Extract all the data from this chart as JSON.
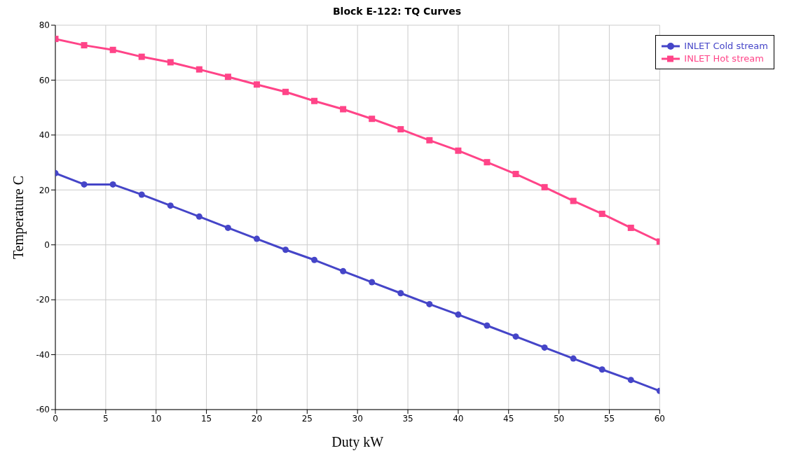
{
  "chart_data": {
    "type": "line",
    "title": "Block E-122: TQ Curves",
    "xlabel": "Duty kW",
    "ylabel": "Temperature C",
    "x": [
      0,
      2.857,
      5.714,
      8.571,
      11.429,
      14.286,
      17.143,
      20,
      22.857,
      25.714,
      28.571,
      31.429,
      34.286,
      37.143,
      40,
      42.857,
      45.714,
      48.571,
      51.429,
      54.286,
      57.143,
      60
    ],
    "series": [
      {
        "name": "INLET Cold stream",
        "color": "#4545c8",
        "marker": "circle",
        "values": [
          26.1,
          22.0,
          22.0,
          18.3,
          14.3,
          10.3,
          6.2,
          2.2,
          -1.8,
          -5.5,
          -9.6,
          -13.6,
          -17.6,
          -21.6,
          -25.4,
          -29.4,
          -33.4,
          -37.4,
          -41.4,
          -45.4,
          -49.2,
          -53.2
        ]
      },
      {
        "name": "INLET Hot stream",
        "color": "#ff4488",
        "marker": "square",
        "values": [
          75.0,
          72.7,
          71.0,
          68.5,
          66.5,
          63.9,
          61.2,
          58.4,
          55.7,
          52.4,
          49.4,
          45.9,
          42.1,
          38.1,
          34.3,
          30.1,
          25.8,
          21.0,
          16.0,
          11.3,
          6.2,
          1.2
        ]
      }
    ],
    "xlim": [
      0,
      60
    ],
    "xticks": [
      0,
      5,
      10,
      15,
      20,
      25,
      30,
      35,
      40,
      45,
      50,
      55,
      60
    ],
    "ylim": [
      -60,
      80
    ],
    "yticks": [
      -60,
      -40,
      -20,
      0,
      20,
      40,
      60,
      80
    ],
    "grid": true,
    "legend": "top right",
    "line_style": "solid"
  }
}
